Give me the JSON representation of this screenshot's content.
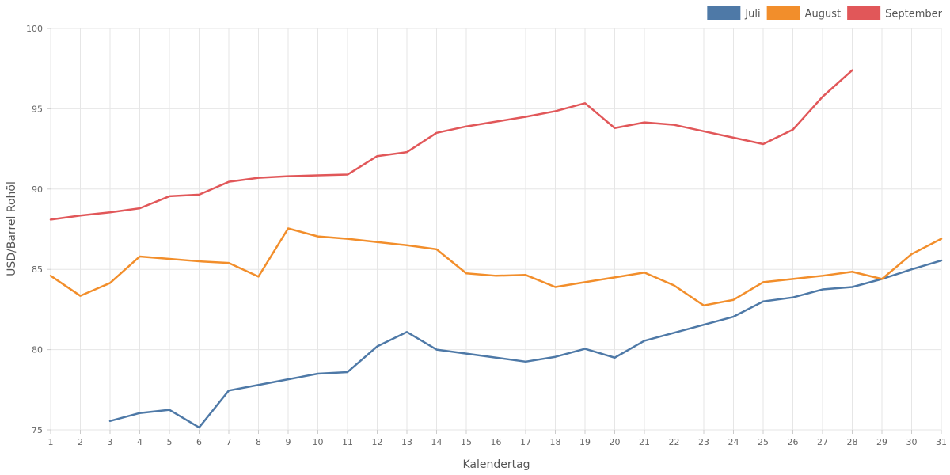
{
  "chart_data": {
    "type": "line",
    "title": "",
    "xlabel": "Kalendertag",
    "ylabel": "USD/Barrel Rohöl",
    "x": [
      1,
      2,
      3,
      4,
      5,
      6,
      7,
      8,
      9,
      10,
      11,
      12,
      13,
      14,
      15,
      16,
      17,
      18,
      19,
      20,
      21,
      22,
      23,
      24,
      25,
      26,
      27,
      28,
      29,
      30,
      31
    ],
    "x_tick_labels": [
      "1",
      "2",
      "3",
      "4",
      "5",
      "6",
      "7",
      "8",
      "9",
      "10",
      "11",
      "12",
      "13",
      "14",
      "15",
      "16",
      "17",
      "18",
      "19",
      "20",
      "21",
      "22",
      "23",
      "24",
      "25",
      "26",
      "27",
      "28",
      "29",
      "30",
      "31"
    ],
    "ylim": [
      75,
      100
    ],
    "y_ticks": [
      75,
      80,
      85,
      90,
      95,
      100
    ],
    "y_tick_labels": [
      "75",
      "80",
      "85",
      "90",
      "95",
      "100"
    ],
    "grid": true,
    "legend_position": "top-right",
    "series": [
      {
        "name": "Juli",
        "color": "#4e79a7",
        "values": [
          null,
          null,
          75.55,
          76.05,
          76.25,
          75.15,
          77.45,
          77.8,
          78.15,
          78.5,
          78.6,
          80.2,
          81.1,
          80.0,
          79.75,
          79.5,
          79.25,
          79.55,
          80.05,
          79.5,
          80.55,
          81.05,
          81.55,
          82.05,
          83.0,
          83.25,
          83.75,
          83.9,
          84.4,
          85.0,
          85.55
        ]
      },
      {
        "name": "August",
        "color": "#f28e2b",
        "values": [
          84.6,
          83.35,
          84.15,
          85.8,
          85.65,
          85.5,
          85.4,
          84.55,
          87.55,
          87.05,
          86.9,
          86.7,
          86.5,
          86.25,
          84.75,
          84.6,
          84.65,
          83.9,
          84.2,
          84.5,
          84.8,
          84.0,
          82.75,
          83.1,
          84.2,
          84.4,
          84.6,
          84.85,
          84.4,
          85.95,
          86.9
        ]
      },
      {
        "name": "September",
        "color": "#e15759",
        "values": [
          88.1,
          88.35,
          88.55,
          88.8,
          89.55,
          89.65,
          90.45,
          90.7,
          90.8,
          90.85,
          90.9,
          92.05,
          92.3,
          93.5,
          93.9,
          94.2,
          94.5,
          94.85,
          95.35,
          93.8,
          94.15,
          94.0,
          93.6,
          93.2,
          92.8,
          93.7,
          95.75,
          97.4,
          null,
          null,
          null
        ]
      }
    ]
  }
}
